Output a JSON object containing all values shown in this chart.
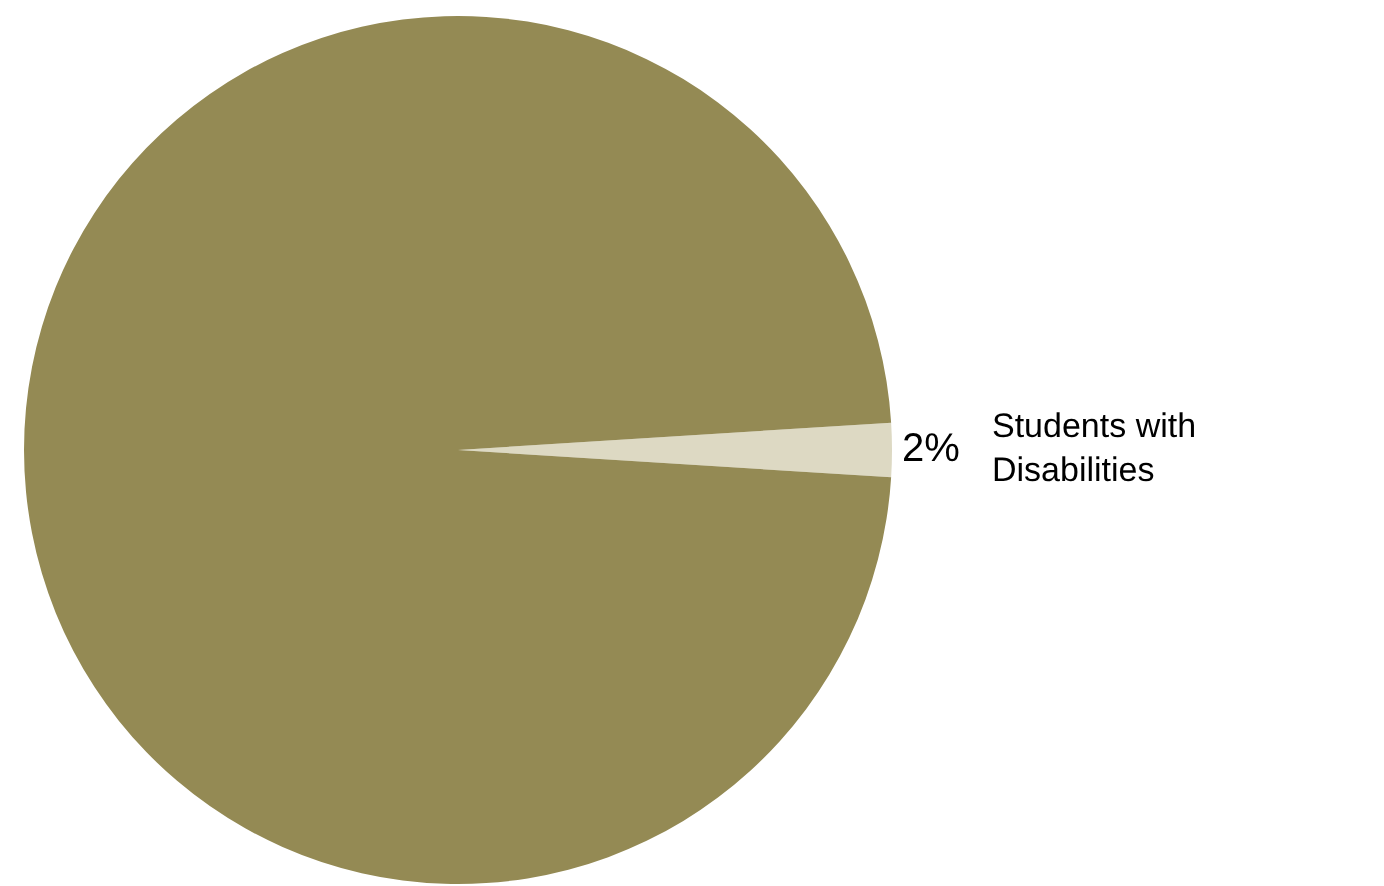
{
  "chart_data": {
    "type": "pie",
    "categories": [
      "Students with Disabilities",
      null
    ],
    "values": [
      2,
      98
    ],
    "colors": [
      "#ddd9c3",
      "#948a54"
    ],
    "value_labels": [
      "2%",
      null
    ],
    "legend": false
  }
}
